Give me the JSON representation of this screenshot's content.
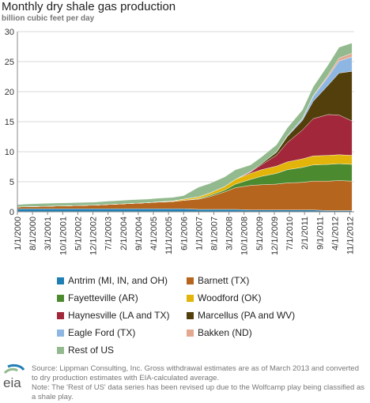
{
  "chart_data": {
    "type": "area",
    "title": "Monthly dry shale gas production",
    "subtitle": "billion cubic feet per day",
    "ylim": [
      0,
      30
    ],
    "yticks": [
      0,
      5,
      10,
      15,
      20,
      25,
      30
    ],
    "grid": true,
    "xtick_labels": [
      "1/1/2000",
      "8/1/2000",
      "3/1/2001",
      "10/1/2001",
      "5/1/2002",
      "12/1/2002",
      "7/1/2003",
      "2/1/2004",
      "9/1/2004",
      "4/1/2005",
      "11/1/2005",
      "6/1/2006",
      "1/1/2007",
      "8/1/2007",
      "3/1/2008",
      "10/1/2008",
      "5/1/2009",
      "12/1/2009",
      "7/1/2010",
      "2/1/2011",
      "9/1/2011",
      "4/1/2012",
      "11/1/2012"
    ],
    "x": [
      "2000-01",
      "2000-06",
      "2001-01",
      "2001-06",
      "2002-01",
      "2002-06",
      "2003-01",
      "2003-06",
      "2004-01",
      "2004-06",
      "2005-01",
      "2005-06",
      "2006-01",
      "2006-06",
      "2007-01",
      "2007-06",
      "2008-01",
      "2008-06",
      "2009-01",
      "2009-06",
      "2010-01",
      "2010-06",
      "2011-01",
      "2011-06",
      "2012-01",
      "2012-06",
      "2012-12"
    ],
    "series": [
      {
        "name": "Antrim (MI, IN, and OH)",
        "color": "#1f7fb5",
        "values": [
          0.5,
          0.5,
          0.5,
          0.5,
          0.5,
          0.5,
          0.5,
          0.5,
          0.5,
          0.5,
          0.5,
          0.5,
          0.5,
          0.5,
          0.4,
          0.4,
          0.4,
          0.4,
          0.3,
          0.3,
          0.3,
          0.3,
          0.3,
          0.3,
          0.2,
          0.2,
          0.2
        ]
      },
      {
        "name": "Barnett (TX)",
        "color": "#b5651d",
        "values": [
          0.3,
          0.35,
          0.4,
          0.45,
          0.5,
          0.55,
          0.6,
          0.7,
          0.8,
          0.9,
          1.0,
          1.1,
          1.2,
          1.4,
          1.7,
          2.1,
          2.9,
          3.6,
          4.1,
          4.2,
          4.3,
          4.5,
          4.6,
          4.8,
          4.9,
          5.0,
          4.9
        ]
      },
      {
        "name": "Fayetteville (AR)",
        "color": "#4c8a2f",
        "values": [
          0,
          0,
          0,
          0,
          0,
          0,
          0,
          0,
          0,
          0,
          0,
          0,
          0,
          0,
          0.1,
          0.2,
          0.3,
          0.6,
          1.0,
          1.4,
          1.8,
          2.2,
          2.5,
          2.7,
          2.8,
          2.8,
          2.8
        ]
      },
      {
        "name": "Woodford (OK)",
        "color": "#e3b409",
        "values": [
          0,
          0,
          0,
          0,
          0,
          0,
          0,
          0,
          0,
          0,
          0,
          0.05,
          0.1,
          0.2,
          0.3,
          0.4,
          0.6,
          0.8,
          1.0,
          1.1,
          1.2,
          1.3,
          1.4,
          1.5,
          1.5,
          1.5,
          1.5
        ]
      },
      {
        "name": "Haynesville (LA and TX)",
        "color": "#a2273a",
        "values": [
          0,
          0,
          0,
          0,
          0,
          0,
          0,
          0,
          0,
          0,
          0,
          0,
          0,
          0,
          0,
          0,
          0,
          0,
          0.2,
          0.8,
          1.8,
          3.2,
          4.8,
          6.2,
          6.8,
          6.6,
          5.7
        ]
      },
      {
        "name": "Marcellus (PA and WV)",
        "color": "#533f0b",
        "values": [
          0,
          0,
          0,
          0,
          0,
          0,
          0,
          0,
          0,
          0,
          0,
          0,
          0,
          0,
          0,
          0,
          0,
          0,
          0.1,
          0.2,
          0.5,
          1.0,
          1.6,
          2.9,
          4.9,
          7.0,
          8.3
        ]
      },
      {
        "name": "Eagle Ford (TX)",
        "color": "#8eb6e3",
        "values": [
          0,
          0,
          0,
          0,
          0,
          0,
          0,
          0,
          0,
          0,
          0,
          0,
          0,
          0,
          0,
          0,
          0,
          0,
          0,
          0,
          0.05,
          0.15,
          0.3,
          0.8,
          1.4,
          2.0,
          2.4
        ]
      },
      {
        "name": "Bakken (ND)",
        "color": "#e3a890",
        "values": [
          0,
          0,
          0,
          0,
          0,
          0,
          0,
          0,
          0,
          0,
          0,
          0,
          0,
          0,
          0,
          0,
          0,
          0,
          0,
          0,
          0,
          0,
          0.05,
          0.1,
          0.3,
          0.5,
          0.6
        ]
      },
      {
        "name": "Rest of US",
        "color": "#93ba8e",
        "values": [
          0.4,
          0.45,
          0.5,
          0.5,
          0.5,
          0.5,
          0.5,
          0.55,
          0.6,
          0.6,
          0.6,
          0.6,
          0.6,
          0.6,
          1.6,
          1.6,
          1.6,
          1.6,
          1.1,
          1.1,
          1.2,
          1.3,
          1.4,
          1.5,
          1.7,
          1.8,
          1.7
        ]
      }
    ]
  },
  "legend": [
    "Antrim (MI, IN, and OH)",
    "Barnett (TX)",
    "Fayetteville (AR)",
    "Woodford (OK)",
    "Haynesville (LA and TX)",
    "Marcellus (PA and WV)",
    "Eagle Ford (TX)",
    "Bakken (ND)",
    "Rest of US"
  ],
  "footer": {
    "logo_text": "eia",
    "logo_icon": "eia-logo-icon",
    "source_line1": "Source: Lippman Consulting, Inc. Gross withdrawal estimates are as of March 2013 and converted to dry production estimates with EIA-calculated average.",
    "source_line2": "Note: The 'Rest of US' data series has been revised up due to the Wolfcamp play being classified as a shale play."
  }
}
